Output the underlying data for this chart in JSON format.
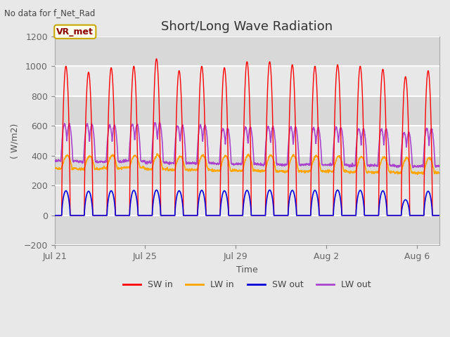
{
  "title": "Short/Long Wave Radiation",
  "xlabel": "Time",
  "ylabel": "( W/m2)",
  "ylim": [
    -200,
    1200
  ],
  "yticks": [
    -200,
    0,
    200,
    400,
    600,
    800,
    1000,
    1200
  ],
  "xtick_labels": [
    "Jul 21",
    "Jul 25",
    "Jul 29",
    "Aug 2",
    "Aug 6"
  ],
  "top_left_text": "No data for f_Net_Rad",
  "legend_box_text": "VR_met",
  "legend_box_color": "#c8a800",
  "legend_box_bg": "#fffff0",
  "n_days": 17,
  "dt_hours": 0.25,
  "colors": {
    "SW_in": "#ff0000",
    "LW_in": "#ffa500",
    "SW_out": "#0000dd",
    "LW_out": "#aa44cc"
  },
  "SW_in_peak": [
    1000,
    960,
    990,
    1000,
    1050,
    970,
    1000,
    990,
    1030,
    1030,
    1010,
    1000,
    1010,
    1000,
    980,
    930,
    970
  ],
  "LW_in_daytime_peak": [
    400,
    395,
    400,
    400,
    405,
    395,
    400,
    398,
    400,
    400,
    398,
    395,
    395,
    390,
    388,
    380,
    385
  ],
  "LW_in_nighttime": [
    315,
    310,
    315,
    320,
    310,
    305,
    305,
    300,
    300,
    295,
    295,
    295,
    295,
    290,
    290,
    285,
    285
  ],
  "SW_out_peak": [
    165,
    162,
    165,
    168,
    170,
    165,
    168,
    165,
    168,
    170,
    168,
    168,
    170,
    168,
    165,
    105,
    162
  ],
  "LW_out_daytime_peak": [
    610,
    610,
    605,
    610,
    620,
    600,
    605,
    580,
    590,
    595,
    590,
    585,
    590,
    580,
    580,
    555,
    580
  ],
  "LW_out_nighttime": [
    365,
    360,
    360,
    365,
    355,
    350,
    350,
    345,
    345,
    340,
    340,
    340,
    340,
    335,
    335,
    330,
    330
  ],
  "background_color": "#e8e8e8",
  "plot_bg_color": "#e8e8e8",
  "band_colors": [
    "#d8d8d8",
    "#e8e8e8"
  ],
  "grid_color": "#ffffff",
  "title_fontsize": 13,
  "label_fontsize": 9,
  "tick_fontsize": 9
}
